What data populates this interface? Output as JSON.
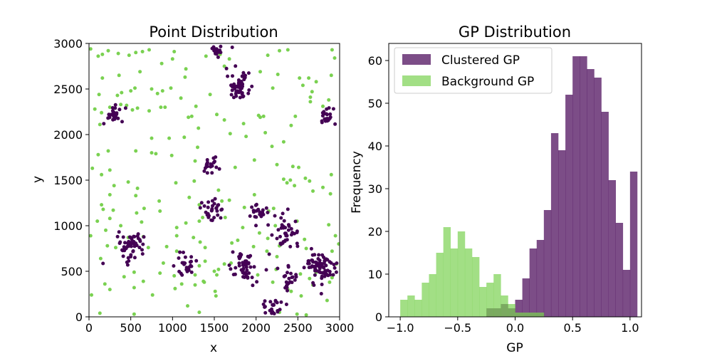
{
  "chart_data": [
    {
      "type": "scatter",
      "title": "Point Distribution",
      "xlabel": "x",
      "ylabel": "y",
      "xlim": [
        0,
        3000
      ],
      "ylim": [
        0,
        3000
      ],
      "xticks": [
        "0",
        "500",
        "1000",
        "1500",
        "2000",
        "2500",
        "3000"
      ],
      "yticks": [
        "0",
        "500",
        "1000",
        "1500",
        "2000",
        "2500",
        "3000"
      ],
      "colors": {
        "clustered": "#440154",
        "background": "#7ad151"
      },
      "clusters": [
        {
          "center": [
            1540,
            2940
          ],
          "n": 20,
          "spread": 45
        },
        {
          "center": [
            1790,
            2520
          ],
          "n": 50,
          "spread": 70
        },
        {
          "center": [
            290,
            2210
          ],
          "n": 28,
          "spread": 60
        },
        {
          "center": [
            2830,
            2190
          ],
          "n": 22,
          "spread": 50
        },
        {
          "center": [
            1460,
            1670
          ],
          "n": 22,
          "spread": 55
        },
        {
          "center": [
            1490,
            1170
          ],
          "n": 30,
          "spread": 70
        },
        {
          "center": [
            2040,
            1150
          ],
          "n": 22,
          "spread": 60
        },
        {
          "center": [
            2360,
            950
          ],
          "n": 40,
          "spread": 75
        },
        {
          "center": [
            510,
            780
          ],
          "n": 55,
          "spread": 80
        },
        {
          "center": [
            1150,
            570
          ],
          "n": 25,
          "spread": 70
        },
        {
          "center": [
            1870,
            530
          ],
          "n": 50,
          "spread": 80
        },
        {
          "center": [
            2380,
            420
          ],
          "n": 25,
          "spread": 70
        },
        {
          "center": [
            2780,
            540
          ],
          "n": 80,
          "spread": 90
        },
        {
          "center": [
            2190,
            90
          ],
          "n": 22,
          "spread": 60
        }
      ],
      "background_points": [
        [
          20,
          2940
        ],
        [
          110,
          2860
        ],
        [
          160,
          2880
        ],
        [
          230,
          2920
        ],
        [
          350,
          2890
        ],
        [
          480,
          2870
        ],
        [
          560,
          2900
        ],
        [
          640,
          2910
        ],
        [
          720,
          2930
        ],
        [
          1000,
          2830
        ],
        [
          1020,
          2910
        ],
        [
          1400,
          2860
        ],
        [
          1570,
          2880
        ],
        [
          1680,
          2830
        ],
        [
          2140,
          2870
        ],
        [
          2280,
          2920
        ],
        [
          2380,
          2930
        ],
        [
          2910,
          2930
        ],
        [
          2940,
          2840
        ],
        [
          160,
          2620
        ],
        [
          360,
          2650
        ],
        [
          610,
          2690
        ],
        [
          870,
          2780
        ],
        [
          1150,
          2630
        ],
        [
          1160,
          2720
        ],
        [
          1620,
          2750
        ],
        [
          2050,
          2690
        ],
        [
          2260,
          2660
        ],
        [
          2520,
          2620
        ],
        [
          2630,
          2620
        ],
        [
          2900,
          2650
        ],
        [
          120,
          2440
        ],
        [
          340,
          2430
        ],
        [
          390,
          2460
        ],
        [
          500,
          2480
        ],
        [
          550,
          2510
        ],
        [
          750,
          2500
        ],
        [
          820,
          2450
        ],
        [
          880,
          2480
        ],
        [
          980,
          2510
        ],
        [
          1100,
          2400
        ],
        [
          1450,
          2440
        ],
        [
          2200,
          2510
        ],
        [
          2560,
          2540
        ],
        [
          2650,
          2410
        ],
        [
          2670,
          2470
        ],
        [
          2720,
          2580
        ],
        [
          2870,
          2380
        ],
        [
          70,
          2280
        ],
        [
          150,
          2240
        ],
        [
          250,
          2300
        ],
        [
          380,
          2330
        ],
        [
          450,
          2320
        ],
        [
          520,
          2270
        ],
        [
          580,
          2290
        ],
        [
          720,
          2260
        ],
        [
          860,
          2300
        ],
        [
          910,
          2300
        ],
        [
          1190,
          2190
        ],
        [
          1230,
          2200
        ],
        [
          1280,
          2310
        ],
        [
          1530,
          2220
        ],
        [
          2050,
          2190
        ],
        [
          2090,
          2200
        ],
        [
          2420,
          2100
        ],
        [
          2470,
          2200
        ],
        [
          2650,
          2360
        ],
        [
          2800,
          2310
        ],
        [
          130,
          2110
        ],
        [
          230,
          2180
        ],
        [
          750,
          1960
        ],
        [
          960,
          1960
        ],
        [
          1140,
          1970
        ],
        [
          1310,
          2070
        ],
        [
          1620,
          2160
        ],
        [
          1690,
          2010
        ],
        [
          1850,
          2120
        ],
        [
          1880,
          1980
        ],
        [
          2030,
          2210
        ],
        [
          2110,
          2020
        ],
        [
          2190,
          1870
        ],
        [
          2330,
          1920
        ],
        [
          110,
          1780
        ],
        [
          230,
          1820
        ],
        [
          560,
          1820
        ],
        [
          750,
          1800
        ],
        [
          800,
          1790
        ],
        [
          990,
          1770
        ],
        [
          1270,
          1710
        ],
        [
          1300,
          1860
        ],
        [
          1750,
          1640
        ],
        [
          1980,
          1720
        ],
        [
          2250,
          1670
        ],
        [
          2440,
          1650
        ],
        [
          2510,
          1640
        ],
        [
          2590,
          1520
        ],
        [
          2900,
          1560
        ],
        [
          40,
          1630
        ],
        [
          150,
          1560
        ],
        [
          250,
          1610
        ],
        [
          300,
          1440
        ],
        [
          470,
          1480
        ],
        [
          1040,
          1470
        ],
        [
          1260,
          1490
        ],
        [
          1550,
          1390
        ],
        [
          1980,
          1340
        ],
        [
          2330,
          1510
        ],
        [
          2370,
          1470
        ],
        [
          2410,
          1500
        ],
        [
          2460,
          1440
        ],
        [
          2640,
          1490
        ],
        [
          2800,
          1420
        ],
        [
          150,
          1230
        ],
        [
          170,
          1180
        ],
        [
          250,
          1340
        ],
        [
          290,
          1170
        ],
        [
          560,
          1330
        ],
        [
          580,
          1410
        ],
        [
          660,
          1190
        ],
        [
          840,
          1270
        ],
        [
          1200,
          1310
        ],
        [
          1320,
          1230
        ],
        [
          1590,
          1270
        ],
        [
          1680,
          1280
        ],
        [
          1860,
          1200
        ],
        [
          2150,
          1160
        ],
        [
          2210,
          1190
        ],
        [
          2680,
          1380
        ],
        [
          2890,
          1350
        ],
        [
          100,
          1050
        ],
        [
          250,
          1080
        ],
        [
          380,
          1000
        ],
        [
          570,
          1140
        ],
        [
          630,
          1040
        ],
        [
          850,
          1160
        ],
        [
          1050,
          980
        ],
        [
          1160,
          1030
        ],
        [
          1320,
          1050
        ],
        [
          1360,
          1090
        ],
        [
          1630,
          1090
        ],
        [
          1840,
          980
        ],
        [
          2040,
          920
        ],
        [
          2230,
          1000
        ],
        [
          2490,
          1050
        ],
        [
          2870,
          1010
        ],
        [
          20,
          890
        ],
        [
          200,
          950
        ],
        [
          470,
          870
        ],
        [
          650,
          880
        ],
        [
          1050,
          890
        ],
        [
          1250,
          870
        ],
        [
          1710,
          810
        ],
        [
          1780,
          840
        ],
        [
          1970,
          770
        ],
        [
          2140,
          860
        ],
        [
          2580,
          850
        ],
        [
          2950,
          890
        ],
        [
          2990,
          800
        ],
        [
          220,
          780
        ],
        [
          320,
          760
        ],
        [
          710,
          760
        ],
        [
          930,
          770
        ],
        [
          1050,
          720
        ],
        [
          1330,
          820
        ],
        [
          1390,
          760
        ],
        [
          2130,
          720
        ],
        [
          2280,
          780
        ],
        [
          2600,
          750
        ],
        [
          2910,
          720
        ],
        [
          140,
          640
        ],
        [
          1190,
          520
        ],
        [
          1320,
          560
        ],
        [
          1390,
          610
        ],
        [
          1500,
          500
        ],
        [
          1550,
          520
        ],
        [
          1620,
          580
        ],
        [
          1700,
          590
        ],
        [
          2250,
          660
        ],
        [
          2630,
          600
        ],
        [
          2830,
          630
        ],
        [
          2960,
          580
        ],
        [
          420,
          440
        ],
        [
          540,
          490
        ],
        [
          850,
          480
        ],
        [
          890,
          590
        ],
        [
          1020,
          450
        ],
        [
          1270,
          350
        ],
        [
          1270,
          460
        ],
        [
          1370,
          390
        ],
        [
          1530,
          460
        ],
        [
          2020,
          460
        ],
        [
          2200,
          380
        ],
        [
          2240,
          520
        ],
        [
          2530,
          470
        ],
        [
          2640,
          420
        ],
        [
          2720,
          490
        ],
        [
          2910,
          430
        ],
        [
          30,
          240
        ],
        [
          190,
          360
        ],
        [
          250,
          300
        ],
        [
          540,
          320
        ],
        [
          650,
          390
        ],
        [
          760,
          240
        ],
        [
          1030,
          310
        ],
        [
          1110,
          360
        ],
        [
          1380,
          380
        ],
        [
          1510,
          280
        ],
        [
          1520,
          230
        ],
        [
          2380,
          300
        ],
        [
          2420,
          280
        ],
        [
          2540,
          230
        ],
        [
          2680,
          350
        ],
        [
          2880,
          380
        ],
        [
          130,
          40
        ],
        [
          540,
          30
        ],
        [
          1180,
          120
        ],
        [
          1320,
          50
        ],
        [
          2280,
          50
        ],
        [
          2490,
          30
        ],
        [
          2600,
          20
        ],
        [
          2850,
          180
        ]
      ]
    },
    {
      "type": "bar",
      "title": "GP Distribution",
      "xlabel": "GP",
      "ylabel": "Frequency",
      "xlim": [
        -1.1,
        1.1
      ],
      "ylim": [
        0,
        64
      ],
      "xticks": [
        "−1.0",
        "−0.5",
        "0.0",
        "0.5",
        "1.0"
      ],
      "yticks": [
        "0",
        "10",
        "20",
        "30",
        "40",
        "50",
        "60"
      ],
      "legend_position": "top-left",
      "series": [
        {
          "name": "Clustered GP",
          "color": "#440154",
          "opacity": 0.7,
          "bin_start": -0.25,
          "bin_width": 0.0625,
          "values": [
            2,
            2,
            3,
            2,
            4,
            9,
            16,
            18,
            25,
            43,
            39,
            52,
            61,
            61,
            58,
            56,
            48,
            32,
            22,
            11,
            34
          ]
        },
        {
          "name": "Background GP",
          "color": "#7ad151",
          "opacity": 0.7,
          "bin_start": -1.0,
          "bin_width": 0.0625,
          "values": [
            4,
            5,
            4,
            8,
            10,
            15,
            21,
            16,
            20,
            16,
            14,
            7,
            8,
            10,
            5,
            3,
            1,
            1,
            1,
            1,
            0
          ]
        }
      ]
    }
  ]
}
